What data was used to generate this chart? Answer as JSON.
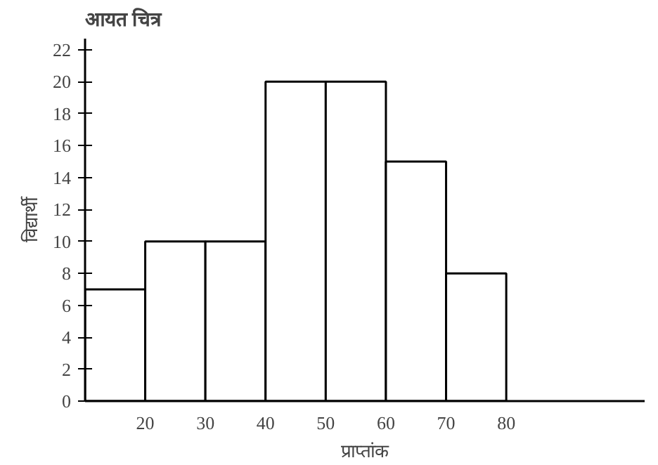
{
  "chart_data": {
    "type": "histogram",
    "title": "आयत चित्र",
    "xlabel": "प्राप्तांक",
    "ylabel": "विद्यार्थी",
    "bins": [
      10,
      20,
      30,
      40,
      50,
      60,
      70,
      80
    ],
    "values": [
      7,
      10,
      10,
      20,
      20,
      15,
      8
    ],
    "color": "#ffffff",
    "xlim": [
      10,
      103
    ],
    "xticks": [
      20,
      30,
      40,
      50,
      60,
      70,
      80
    ],
    "ylim": [
      0,
      22.7
    ],
    "yticks": [
      0,
      2,
      4,
      6,
      8,
      10,
      12,
      14,
      16,
      18,
      20,
      22
    ],
    "grid": false
  }
}
